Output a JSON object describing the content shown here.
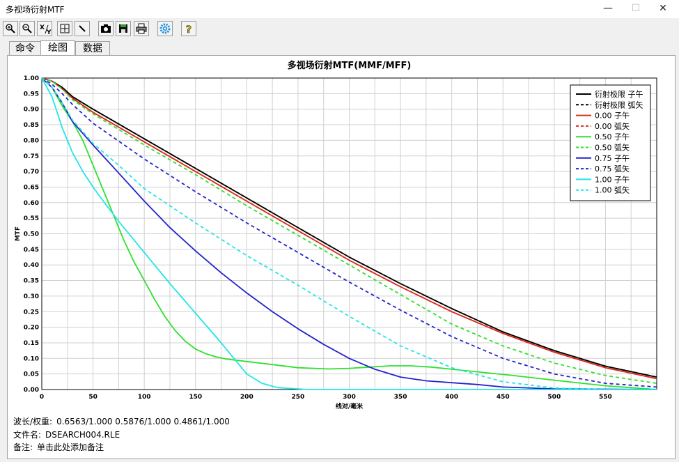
{
  "window": {
    "title": "多视场衍射MTF",
    "minimize": "—",
    "maximize": "☐",
    "close": "✕"
  },
  "toolbar": {
    "buttons": [
      {
        "name": "zoom-in-icon"
      },
      {
        "name": "zoom-out-icon"
      },
      {
        "name": "xy-axes-icon",
        "label": "XY"
      },
      {
        "name": "fit-window-icon"
      },
      {
        "name": "pen-icon"
      },
      {
        "name": "camera-icon"
      },
      {
        "name": "save-icon"
      },
      {
        "name": "print-icon"
      },
      {
        "name": "gear-icon"
      },
      {
        "name": "help-icon",
        "label": "?"
      }
    ]
  },
  "tabs": [
    {
      "label": "命令",
      "active": false
    },
    {
      "label": "绘图",
      "active": true
    },
    {
      "label": "数据",
      "active": false
    }
  ],
  "chart_data": {
    "type": "line",
    "title": "多视场衍射MTF(MMF/MFF)",
    "xlabel": "线对/毫米",
    "ylabel": "MTF",
    "xlim": [
      0,
      600
    ],
    "ylim": [
      0,
      1
    ],
    "xticks": [
      0,
      50,
      100,
      150,
      200,
      250,
      300,
      350,
      400,
      450,
      500,
      550
    ],
    "yticks": [
      0.0,
      0.05,
      0.1,
      0.15,
      0.2,
      0.25,
      0.3,
      0.35,
      0.4,
      0.45,
      0.5,
      0.55,
      0.6,
      0.65,
      0.7,
      0.75,
      0.8,
      0.85,
      0.9,
      0.95,
      1.0
    ],
    "grid": true,
    "legend_position": "top-right",
    "series": [
      {
        "name": "衍射极限 子午",
        "color": "#000000",
        "dash": false,
        "points": [
          [
            0,
            1.0
          ],
          [
            10,
            0.99
          ],
          [
            20,
            0.97
          ],
          [
            30,
            0.94
          ],
          [
            50,
            0.9
          ],
          [
            100,
            0.805
          ],
          [
            150,
            0.71
          ],
          [
            200,
            0.615
          ],
          [
            250,
            0.52
          ],
          [
            300,
            0.425
          ],
          [
            350,
            0.34
          ],
          [
            400,
            0.26
          ],
          [
            450,
            0.185
          ],
          [
            500,
            0.125
          ],
          [
            550,
            0.075
          ],
          [
            600,
            0.04
          ]
        ]
      },
      {
        "name": "衍射极限 弧矢",
        "color": "#000000",
        "dash": true,
        "points": [
          [
            0,
            1.0
          ],
          [
            10,
            0.99
          ],
          [
            20,
            0.97
          ],
          [
            30,
            0.94
          ],
          [
            50,
            0.9
          ],
          [
            100,
            0.805
          ],
          [
            150,
            0.71
          ],
          [
            200,
            0.615
          ],
          [
            250,
            0.52
          ],
          [
            300,
            0.425
          ],
          [
            350,
            0.34
          ],
          [
            400,
            0.26
          ],
          [
            450,
            0.185
          ],
          [
            500,
            0.125
          ],
          [
            550,
            0.075
          ],
          [
            600,
            0.04
          ]
        ]
      },
      {
        "name": "0.00 子午",
        "color": "#dd2a1a",
        "dash": false,
        "points": [
          [
            0,
            1.0
          ],
          [
            10,
            0.99
          ],
          [
            20,
            0.965
          ],
          [
            30,
            0.935
          ],
          [
            50,
            0.89
          ],
          [
            100,
            0.795
          ],
          [
            150,
            0.7
          ],
          [
            200,
            0.605
          ],
          [
            250,
            0.51
          ],
          [
            300,
            0.415
          ],
          [
            350,
            0.33
          ],
          [
            400,
            0.25
          ],
          [
            450,
            0.18
          ],
          [
            500,
            0.12
          ],
          [
            550,
            0.07
          ],
          [
            600,
            0.035
          ]
        ]
      },
      {
        "name": "0.00 弧矢",
        "color": "#dd2a1a",
        "dash": true,
        "points": [
          [
            0,
            1.0
          ],
          [
            10,
            0.99
          ],
          [
            20,
            0.965
          ],
          [
            30,
            0.935
          ],
          [
            50,
            0.89
          ],
          [
            100,
            0.795
          ],
          [
            150,
            0.7
          ],
          [
            200,
            0.605
          ],
          [
            250,
            0.51
          ],
          [
            300,
            0.415
          ],
          [
            350,
            0.33
          ],
          [
            400,
            0.25
          ],
          [
            450,
            0.18
          ],
          [
            500,
            0.12
          ],
          [
            550,
            0.07
          ],
          [
            600,
            0.035
          ]
        ]
      },
      {
        "name": "0.50 子午",
        "color": "#2ee02e",
        "dash": false,
        "points": [
          [
            0,
            1.0
          ],
          [
            10,
            0.97
          ],
          [
            20,
            0.91
          ],
          [
            30,
            0.86
          ],
          [
            40,
            0.8
          ],
          [
            50,
            0.72
          ],
          [
            60,
            0.64
          ],
          [
            70,
            0.56
          ],
          [
            80,
            0.48
          ],
          [
            90,
            0.41
          ],
          [
            100,
            0.35
          ],
          [
            110,
            0.29
          ],
          [
            120,
            0.235
          ],
          [
            130,
            0.19
          ],
          [
            140,
            0.155
          ],
          [
            150,
            0.13
          ],
          [
            160,
            0.115
          ],
          [
            170,
            0.105
          ],
          [
            180,
            0.098
          ],
          [
            200,
            0.09
          ],
          [
            220,
            0.082
          ],
          [
            250,
            0.07
          ],
          [
            280,
            0.066
          ],
          [
            300,
            0.068
          ],
          [
            320,
            0.072
          ],
          [
            340,
            0.076
          ],
          [
            360,
            0.076
          ],
          [
            380,
            0.072
          ],
          [
            400,
            0.065
          ],
          [
            430,
            0.055
          ],
          [
            460,
            0.045
          ],
          [
            500,
            0.03
          ],
          [
            550,
            0.012
          ],
          [
            600,
            0.0
          ]
        ]
      },
      {
        "name": "0.50 弧矢",
        "color": "#2ee02e",
        "dash": true,
        "points": [
          [
            0,
            1.0
          ],
          [
            10,
            0.99
          ],
          [
            20,
            0.965
          ],
          [
            30,
            0.93
          ],
          [
            50,
            0.885
          ],
          [
            100,
            0.785
          ],
          [
            150,
            0.69
          ],
          [
            200,
            0.59
          ],
          [
            250,
            0.495
          ],
          [
            300,
            0.4
          ],
          [
            350,
            0.305
          ],
          [
            400,
            0.21
          ],
          [
            450,
            0.14
          ],
          [
            500,
            0.085
          ],
          [
            550,
            0.045
          ],
          [
            600,
            0.02
          ]
        ]
      },
      {
        "name": "0.75 子午",
        "color": "#2222cc",
        "dash": false,
        "points": [
          [
            0,
            1.0
          ],
          [
            10,
            0.97
          ],
          [
            20,
            0.92
          ],
          [
            30,
            0.86
          ],
          [
            50,
            0.785
          ],
          [
            75,
            0.695
          ],
          [
            100,
            0.605
          ],
          [
            125,
            0.52
          ],
          [
            150,
            0.445
          ],
          [
            175,
            0.375
          ],
          [
            200,
            0.31
          ],
          [
            225,
            0.25
          ],
          [
            250,
            0.195
          ],
          [
            275,
            0.145
          ],
          [
            300,
            0.1
          ],
          [
            325,
            0.065
          ],
          [
            350,
            0.04
          ],
          [
            375,
            0.028
          ],
          [
            400,
            0.022
          ],
          [
            425,
            0.016
          ],
          [
            450,
            0.008
          ],
          [
            500,
            0.002
          ],
          [
            600,
            0.0
          ]
        ]
      },
      {
        "name": "0.75 弧矢",
        "color": "#2222cc",
        "dash": true,
        "points": [
          [
            0,
            1.0
          ],
          [
            10,
            0.98
          ],
          [
            20,
            0.95
          ],
          [
            30,
            0.915
          ],
          [
            50,
            0.855
          ],
          [
            100,
            0.74
          ],
          [
            150,
            0.635
          ],
          [
            200,
            0.535
          ],
          [
            250,
            0.44
          ],
          [
            300,
            0.345
          ],
          [
            350,
            0.255
          ],
          [
            400,
            0.17
          ],
          [
            450,
            0.1
          ],
          [
            500,
            0.05
          ],
          [
            550,
            0.02
          ],
          [
            600,
            0.008
          ]
        ]
      },
      {
        "name": "1.00 子午",
        "color": "#22e5e5",
        "dash": false,
        "points": [
          [
            0,
            1.0
          ],
          [
            10,
            0.94
          ],
          [
            20,
            0.84
          ],
          [
            30,
            0.76
          ],
          [
            40,
            0.7
          ],
          [
            50,
            0.65
          ],
          [
            60,
            0.605
          ],
          [
            75,
            0.54
          ],
          [
            100,
            0.44
          ],
          [
            125,
            0.34
          ],
          [
            150,
            0.245
          ],
          [
            175,
            0.15
          ],
          [
            190,
            0.09
          ],
          [
            200,
            0.05
          ],
          [
            215,
            0.02
          ],
          [
            230,
            0.006
          ],
          [
            260,
            0.0
          ],
          [
            600,
            0.0
          ]
        ]
      },
      {
        "name": "1.00 弧矢",
        "color": "#22e5e5",
        "dash": true,
        "points": [
          [
            0,
            1.0
          ],
          [
            10,
            0.97
          ],
          [
            20,
            0.92
          ],
          [
            30,
            0.865
          ],
          [
            50,
            0.79
          ],
          [
            75,
            0.72
          ],
          [
            100,
            0.645
          ],
          [
            150,
            0.535
          ],
          [
            200,
            0.43
          ],
          [
            250,
            0.335
          ],
          [
            300,
            0.235
          ],
          [
            350,
            0.14
          ],
          [
            400,
            0.07
          ],
          [
            450,
            0.025
          ],
          [
            500,
            0.005
          ],
          [
            550,
            0.0
          ],
          [
            600,
            0.0
          ]
        ]
      }
    ]
  },
  "footer": {
    "wavelength_label": "波长/权重:",
    "wavelength_value": "0.6563/1.000  0.5876/1.000  0.4861/1.000",
    "file_label": "文件名:",
    "file_value": "DSEARCH004.RLE",
    "note_label": "备注:",
    "note_value": "单击此处添加备注"
  }
}
